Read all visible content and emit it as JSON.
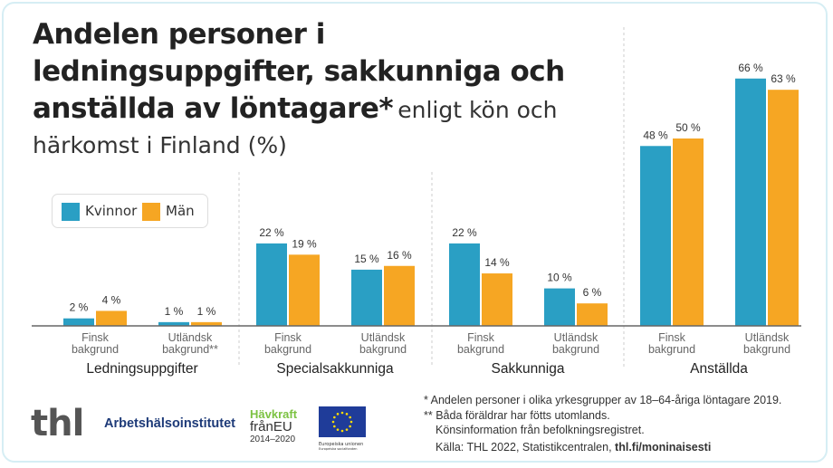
{
  "title": {
    "bold": "Andelen personer i ledningsuppgifter, sakkunniga och anställda av löntagare*",
    "normal": "enligt kön och härkomst i Finland (%)"
  },
  "legend": [
    {
      "label": "Kvinnor",
      "color": "#2a9fc4"
    },
    {
      "label": "Män",
      "color": "#f6a623"
    }
  ],
  "chart_data": {
    "type": "bar",
    "title": "Andelen personer i ledningsuppgifter, sakkunniga och anställda av löntagare* enligt kön och härkomst i Finland (%)",
    "groups": [
      "Ledningsuppgifter",
      "Specialsakkunniga",
      "Sakkunniga",
      "Anställda"
    ],
    "categories": [
      [
        "Finsk bakgrund",
        "Utländsk bakgrund**"
      ],
      [
        "Finsk bakgrund",
        "Utländsk bakgrund"
      ],
      [
        "Finsk bakgrund",
        "Utländsk bakgrund"
      ],
      [
        "Finsk bakgrund",
        "Utländsk bakgrund"
      ]
    ],
    "series": [
      {
        "name": "Kvinnor",
        "color": "#2a9fc4",
        "values": [
          [
            2,
            1
          ],
          [
            22,
            15
          ],
          [
            22,
            10
          ],
          [
            48,
            66
          ]
        ]
      },
      {
        "name": "Män",
        "color": "#f6a623",
        "values": [
          [
            4,
            1
          ],
          [
            19,
            16
          ],
          [
            14,
            6
          ],
          [
            50,
            63
          ]
        ]
      }
    ],
    "value_suffix": " %",
    "ylim": [
      0,
      70
    ],
    "grid": false,
    "legend_position": "top-left"
  },
  "footnotes": {
    "note1": "* Andelen personer i olika yrkesgrupper av 18–64-åriga löntagare 2019.",
    "note2": "** Båda föräldrar har fötts utomlands.",
    "note3": "Könsinformation från befolkningsregistret.",
    "source": "Källa: THL 2022, Statistikcentralen,",
    "source_link": "thl.fi/moninaisesti"
  },
  "logos": {
    "thl": "thl",
    "ahi": "Arbetshälsoinstitutet",
    "havkraft_1": "Hävkraft",
    "havkraft_2": "frånEU",
    "havkraft_3": "2014–2020",
    "eu_1": "Europeiska unionen",
    "eu_2": "Europeiska socialfonden"
  }
}
